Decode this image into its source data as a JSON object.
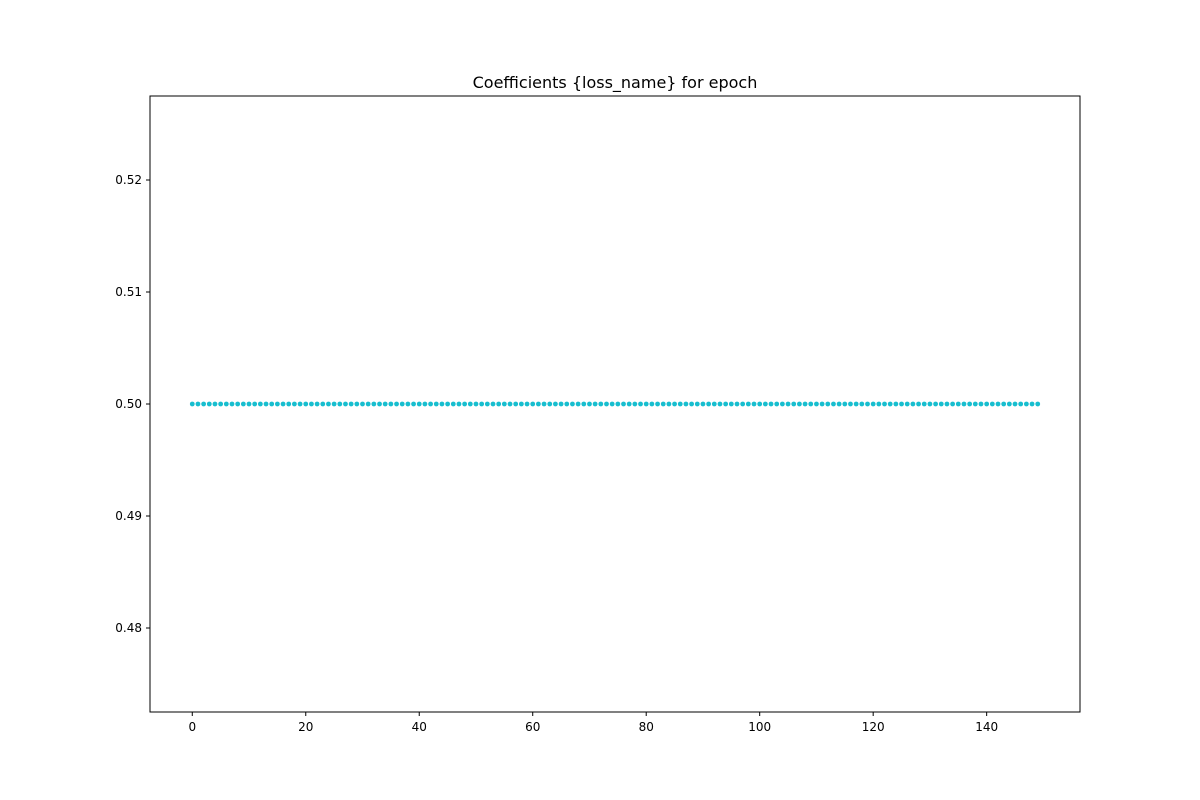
{
  "chart_data": {
    "type": "scatter",
    "title": "Coefficients {loss_name} for epoch",
    "xlabel": "",
    "ylabel": "",
    "xlim": [
      -7.45,
      156.45
    ],
    "ylim": [
      0.4725,
      0.5275
    ],
    "x_ticks": [
      0,
      20,
      40,
      60,
      80,
      100,
      120,
      140
    ],
    "y_ticks": [
      0.48,
      0.49,
      0.5,
      0.51,
      0.52
    ],
    "x_tick_labels": [
      "0",
      "20",
      "40",
      "60",
      "80",
      "100",
      "120",
      "140"
    ],
    "y_tick_labels": [
      "0.48",
      "0.49",
      "0.50",
      "0.51",
      "0.52"
    ],
    "grid": false,
    "series": [
      {
        "color": "#17becf",
        "marker": "dot",
        "x_start": 0,
        "x_end": 149,
        "x_step": 1,
        "constant_value": 0.5
      }
    ]
  }
}
